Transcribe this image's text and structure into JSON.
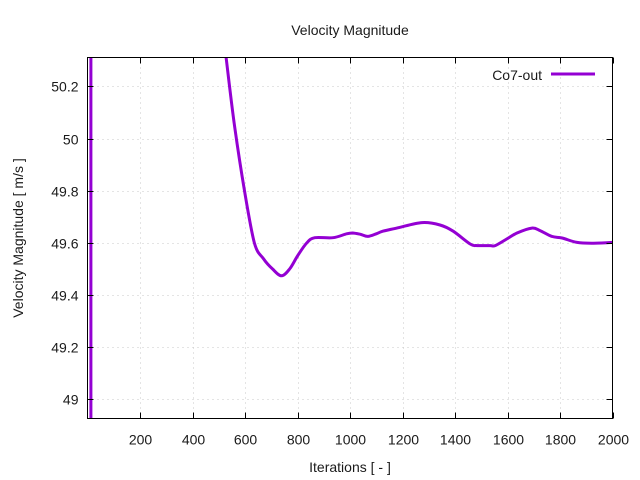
{
  "chart_data": {
    "type": "line",
    "title": "Velocity Magnitude",
    "xlabel": "Iterations [ - ]",
    "ylabel": "Velocity Magnitude [ m/s ]",
    "xlim": [
      0,
      2000
    ],
    "ylim": [
      48.927,
      50.311
    ],
    "xticks": [
      200,
      400,
      600,
      800,
      1000,
      1200,
      1400,
      1600,
      1800,
      2000
    ],
    "xtick_labels": [
      "200",
      "400",
      "600",
      "800",
      "1000",
      "1200",
      "1400",
      "1600",
      "1800",
      "2000"
    ],
    "yticks": [
      49,
      49.2,
      49.4,
      49.6,
      49.8,
      50,
      50.2
    ],
    "ytick_labels": [
      "49",
      "49.2",
      "49.4",
      "49.6",
      "49.8",
      "50",
      "50.2"
    ],
    "grid": true,
    "legend_position": "top-right",
    "series": [
      {
        "name": "Co7-out",
        "color": "#9400d3",
        "x": [
          13,
          13,
          528,
          560,
          598,
          636,
          670,
          705,
          739,
          770,
          800,
          835,
          866,
          935,
          987,
          1010,
          1040,
          1068,
          1100,
          1125,
          1182,
          1274,
          1343,
          1393,
          1458,
          1484,
          1534,
          1553,
          1597,
          1636,
          1693,
          1725,
          1769,
          1808,
          1865,
          1928,
          2000
        ],
        "y": [
          48.927,
          50.311,
          50.311,
          50.05,
          49.8,
          49.6,
          49.54,
          49.5,
          49.474,
          49.5,
          49.55,
          49.6,
          49.62,
          49.62,
          49.635,
          49.638,
          49.633,
          49.625,
          49.635,
          49.645,
          49.658,
          49.678,
          49.669,
          49.645,
          49.596,
          49.59,
          49.59,
          49.59,
          49.615,
          49.638,
          49.657,
          49.647,
          49.625,
          49.619,
          49.602,
          49.599,
          49.602
        ]
      }
    ]
  }
}
